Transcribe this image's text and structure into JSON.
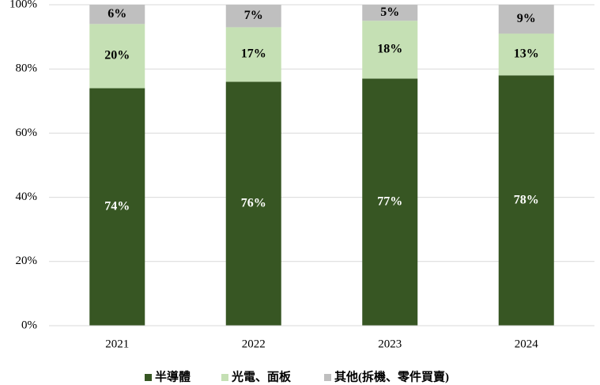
{
  "chart_data": {
    "type": "stacked_bar",
    "categories": [
      "2021",
      "2022",
      "2023",
      "2024"
    ],
    "series": [
      {
        "name": "半導體",
        "color": "#375623",
        "values": [
          74,
          76,
          77,
          78
        ],
        "value_labels": [
          "74%",
          "76%",
          "77%",
          "78%"
        ]
      },
      {
        "name": "光電、面板",
        "color": "#c5e0b4",
        "values": [
          20,
          17,
          18,
          13
        ],
        "value_labels": [
          "20%",
          "17%",
          "18%",
          "13%"
        ]
      },
      {
        "name": "其他(拆機、零件買賣)",
        "color": "#bfbfbf",
        "values": [
          6,
          7,
          5,
          9
        ],
        "value_labels": [
          "6%",
          "7%",
          "5%",
          "9%"
        ]
      }
    ],
    "ylim": [
      0,
      100
    ],
    "yticks": [
      {
        "value": 0,
        "label": "0%"
      },
      {
        "value": 20,
        "label": "20%"
      },
      {
        "value": 40,
        "label": "40%"
      },
      {
        "value": 60,
        "label": "60%"
      },
      {
        "value": 80,
        "label": "80%"
      },
      {
        "value": 100,
        "label": "100%"
      }
    ],
    "grid": true,
    "legend": "bottom"
  }
}
